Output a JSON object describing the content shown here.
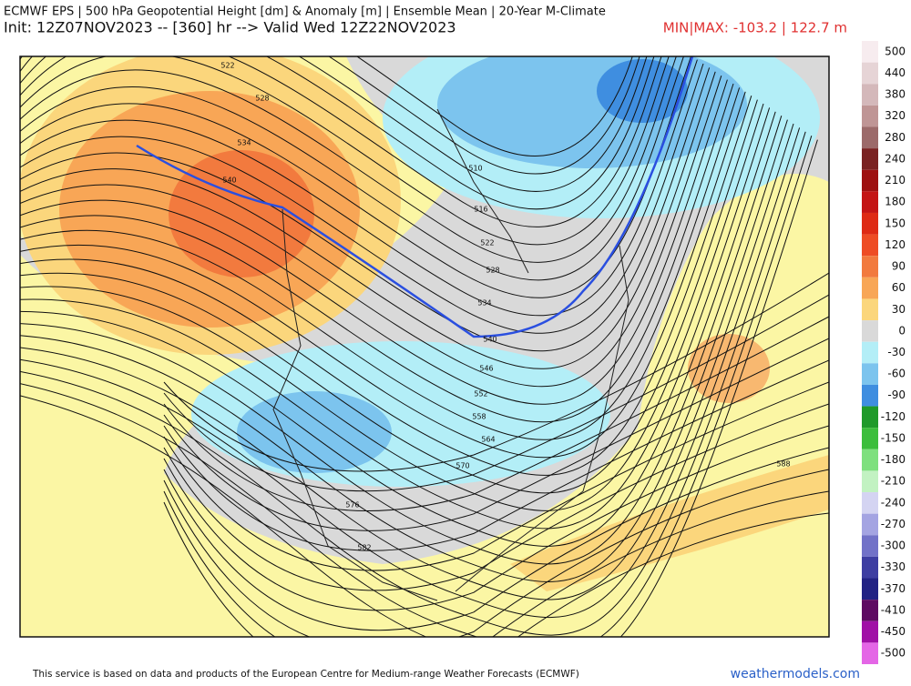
{
  "header": {
    "title": "ECMWF EPS | 500 hPa Geopotential Height [dm] & Anomaly [m] | Ensemble Mean | 20-Year M-Climate",
    "subtitle": "Init: 12Z07NOV2023 -- [360] hr --> Valid Wed 12Z22NOV2023",
    "minmax": "MIN|MAX: -103.2 | 122.7 m"
  },
  "colorbar": [
    {
      "value": 500,
      "color": "#f7ecef"
    },
    {
      "value": 440,
      "color": "#e6d4d6"
    },
    {
      "value": 380,
      "color": "#d4b8ba"
    },
    {
      "value": 320,
      "color": "#bf9595"
    },
    {
      "value": 280,
      "color": "#9c6a6a"
    },
    {
      "value": 240,
      "color": "#7a2222"
    },
    {
      "value": 210,
      "color": "#9e1010"
    },
    {
      "value": 180,
      "color": "#c41414"
    },
    {
      "value": 150,
      "color": "#de2a14"
    },
    {
      "value": 120,
      "color": "#ee4c24"
    },
    {
      "value": 90,
      "color": "#f27a3e"
    },
    {
      "value": 60,
      "color": "#f8a656"
    },
    {
      "value": 30,
      "color": "#fbd67c"
    },
    {
      "value": 0,
      "color": "#d9d9d9"
    },
    {
      "value": -30,
      "color": "#b3eef7"
    },
    {
      "value": -60,
      "color": "#7cc4ee"
    },
    {
      "value": -90,
      "color": "#3f8ee0"
    },
    {
      "value": -120,
      "color": "#1f9a2a"
    },
    {
      "value": -150,
      "color": "#3cbe3c"
    },
    {
      "value": -180,
      "color": "#7ee07e"
    },
    {
      "value": -210,
      "color": "#c2f2c2"
    },
    {
      "value": -240,
      "color": "#d4d4f2"
    },
    {
      "value": -270,
      "color": "#a4a4e2"
    },
    {
      "value": -300,
      "color": "#7272c8"
    },
    {
      "value": -330,
      "color": "#3e3ea2"
    },
    {
      "value": -370,
      "color": "#222284"
    },
    {
      "value": -410,
      "color": "#5e0a62"
    },
    {
      "value": -450,
      "color": "#a010a6"
    },
    {
      "value": -500,
      "color": "#e466e6"
    }
  ],
  "contour_labels": [
    522,
    528,
    534,
    540,
    510,
    516,
    522,
    528,
    534,
    540,
    546,
    552,
    558,
    564,
    570,
    576,
    582,
    588
  ],
  "footer": {
    "note": "This service is based on data and products of the European Centre for Medium-range Weather Forecasts (ECMWF)",
    "site": "weathermodels.com"
  }
}
